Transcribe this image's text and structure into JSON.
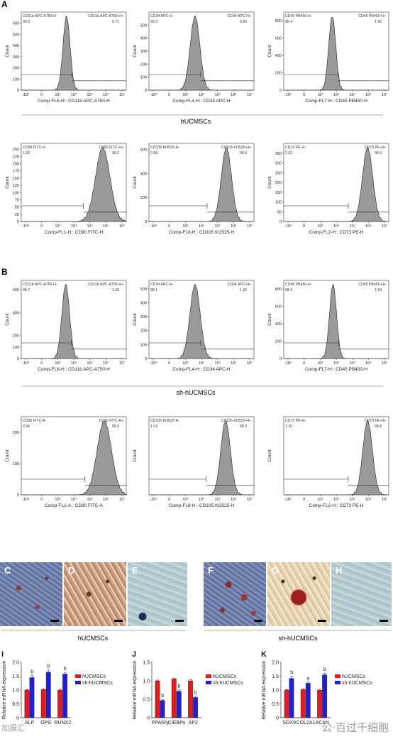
{
  "panel_letters": {
    "A": "A",
    "B": "B",
    "C": "C",
    "D": "D",
    "E": "E",
    "F": "F",
    "G": "G",
    "H": "H",
    "I": "I",
    "J": "J",
    "K": "K"
  },
  "group_labels": {
    "A": "hUCMSCs",
    "B": "sh-hUCMSCs",
    "staining_left": "hUCMSCs",
    "staining_right": "sh-hUCMSCs"
  },
  "histogram_ticks": {
    "x": [
      "-10³",
      "0",
      "10³",
      "10⁴",
      "10⁵",
      "10⁶",
      "10⁷"
    ]
  },
  "watermark": {
    "left": "加报汇",
    "right": "公·百过千细胞"
  },
  "colors": {
    "hist_fill": "#9a9a9a",
    "bar_h": "#e41a1c",
    "bar_sh": "#1f1fd6"
  },
  "chart_data": [
    {
      "type": "histogram",
      "id": "A1",
      "gate_left_label": "CD11b APC-A750-H-",
      "gate_right_label": "CD11b APC-A750-H+",
      "left_pct": "99.3",
      "right_pct": "0.72",
      "xlabel": "Comp-FL6-H:: CD11b APC-A750-H",
      "ylabel": "Count",
      "ylim": [
        0,
        700
      ],
      "yticks": [
        "0",
        "100",
        "200",
        "300",
        "400",
        "500",
        "600"
      ],
      "peak_log": 2.55,
      "width_log": 0.22
    },
    {
      "type": "histogram",
      "id": "A2",
      "gate_left_label": "CD34 APC-H-",
      "gate_right_label": "CD34 APC-H+",
      "left_pct": "99.2",
      "right_pct": "0.80",
      "xlabel": "Comp-FL4-H:: CD34 APC-H",
      "ylabel": "Count",
      "ylim": [
        0,
        600
      ],
      "yticks": [
        "0",
        "100",
        "200",
        "300",
        "400",
        "500"
      ],
      "peak_log": 2.6,
      "width_log": 0.3
    },
    {
      "type": "histogram",
      "id": "A3",
      "gate_left_label": "CD45 PB450-H-",
      "gate_right_label": "CD45 PB450-H+",
      "left_pct": "98.4",
      "right_pct": "1.56",
      "xlabel": "Comp-FL7-H:: CD45 PB450-H",
      "ylabel": "Count",
      "ylim": [
        0,
        900
      ],
      "yticks": [
        "0",
        "200",
        "400",
        "600",
        "800"
      ],
      "peak_log": 2.75,
      "width_log": 0.22
    },
    {
      "type": "histogram",
      "id": "A4",
      "gate_left_label": "CD90 FITC-H-",
      "gate_right_label": "CD90 FITC-H+",
      "left_pct": "1.82",
      "right_pct": "98.2",
      "xlabel": "Comp-FL1-H:: CD90 FITC-H",
      "ylabel": "Count",
      "ylim": [
        0,
        270
      ],
      "yticks": [
        "0",
        "25",
        "50",
        "75",
        "100",
        "125",
        "150",
        "175",
        "200",
        "225",
        "250"
      ],
      "peak_log": 4.8,
      "width_log": 0.45
    },
    {
      "type": "histogram",
      "id": "A5",
      "gate_left_label": "CD105 KO525-H-",
      "gate_right_label": "CD105 KO525-H+",
      "left_pct": "0.99",
      "right_pct": "99.0",
      "xlabel": "Comp-FL8-H:: CD105 KO525-H",
      "ylabel": "Count",
      "ylim": [
        0,
        650
      ],
      "yticks": [
        "0",
        "200",
        "400",
        "600"
      ],
      "peak_log": 4.55,
      "width_log": 0.32
    },
    {
      "type": "histogram",
      "id": "A6",
      "gate_left_label": "CD73 PE-H-",
      "gate_right_label": "CD73 PE-H+",
      "left_pct": "2.02",
      "right_pct": "98.0",
      "xlabel": "Comp-FL2-H:: CD73 PE-H",
      "ylabel": "Count",
      "ylim": [
        0,
        400
      ],
      "yticks": [
        "0",
        "50",
        "100",
        "150",
        "200",
        "250",
        "300",
        "350"
      ],
      "peak_log": 4.95,
      "width_log": 0.32
    },
    {
      "type": "histogram",
      "id": "B1",
      "gate_left_label": "CD11b APC-A750-H-",
      "gate_right_label": "CD11b APC-A750-H+",
      "left_pct": "98.7",
      "right_pct": "1.26",
      "xlabel": "Comp-FL6-H:: CD11b APC-A750-H",
      "ylabel": "Count",
      "ylim": [
        0,
        680
      ],
      "yticks": [
        "0",
        "100",
        "200",
        "400",
        "600"
      ],
      "peak_log": 2.5,
      "width_log": 0.24
    },
    {
      "type": "histogram",
      "id": "B2",
      "gate_left_label": "CD34 APC-H-",
      "gate_right_label": "CD34 APC-H+",
      "left_pct": "98.1",
      "right_pct": "1.92",
      "xlabel": "Comp-FL4-H:: CD34 APC-H",
      "ylabel": "Count",
      "ylim": [
        0,
        560
      ],
      "yticks": [
        "0",
        "100",
        "200",
        "300",
        "400",
        "500"
      ],
      "peak_log": 2.6,
      "width_log": 0.32
    },
    {
      "type": "histogram",
      "id": "B3",
      "gate_left_label": "CD45 PB450-H-",
      "gate_right_label": "CD45 PB450-H+",
      "left_pct": "98.4",
      "right_pct": "1.64",
      "xlabel": "Comp-FL7-H:: CD45 PB450-H",
      "ylabel": "Count",
      "ylim": [
        0,
        900
      ],
      "yticks": [
        "0",
        "200",
        "400",
        "600",
        "800"
      ],
      "peak_log": 2.8,
      "width_log": 0.22
    },
    {
      "type": "histogram",
      "id": "B4",
      "gate_left_label": "CD90 FITC-A-",
      "gate_right_label": "CD90 FITC-A+",
      "left_pct": "0.99",
      "right_pct": "99.0",
      "xlabel": "Comp-FL1-A:: CD90 FITC-A",
      "ylabel": "Count",
      "ylim": [
        0,
        250
      ],
      "yticks": [
        "0",
        "100",
        "200"
      ],
      "peak_log": 4.9,
      "width_log": 0.45
    },
    {
      "type": "histogram",
      "id": "B5",
      "gate_left_label": "CD105 KO525-H-",
      "gate_right_label": "CD105 KO525-H+",
      "left_pct": "1.03",
      "right_pct": "99.0",
      "xlabel": "Comp-FL8-H:: CD105 KO525-H",
      "ylabel": "Count",
      "ylim": [
        0,
        580
      ],
      "yticks": [],
      "peak_log": 4.5,
      "width_log": 0.3
    },
    {
      "type": "histogram",
      "id": "B6",
      "gate_left_label": "CD73 PE-H-",
      "gate_right_label": "CD73 PE-H+",
      "left_pct": "1.20",
      "right_pct": "98.8",
      "xlabel": "Comp-FL2-H:: CD73 PE-H",
      "ylabel": "Count",
      "ylim": [
        0,
        350
      ],
      "yticks": [],
      "peak_log": 4.95,
      "width_log": 0.3
    },
    {
      "type": "bar",
      "id": "I",
      "categories": [
        "ALP",
        "OPG",
        "RUNX2"
      ],
      "series": [
        {
          "name": "hUCMSCs",
          "values": [
            1.0,
            1.02,
            1.0
          ],
          "errors": [
            0.02,
            0.02,
            0.03
          ]
        },
        {
          "name": "sh-hUCMSCs",
          "values": [
            1.45,
            1.65,
            1.58
          ],
          "errors": [
            0.07,
            0.08,
            0.06
          ]
        }
      ],
      "sig": [
        "b",
        "b",
        "b"
      ],
      "ylabel": "Relative mRNA expression",
      "ylim": [
        0,
        2.0
      ],
      "yticks": [
        "0",
        "0.5",
        "1.0",
        "1.5",
        "2.0"
      ]
    },
    {
      "type": "bar",
      "id": "J",
      "categories": [
        "PPAR/γ",
        "C/EBPs",
        "AP2"
      ],
      "series": [
        {
          "name": "hUCMSCs",
          "values": [
            1.0,
            1.05,
            1.0
          ],
          "errors": [
            0.02,
            0.02,
            0.03
          ]
        },
        {
          "name": "sh-hUCMSCs",
          "values": [
            0.47,
            0.72,
            0.55
          ],
          "errors": [
            0.03,
            0.04,
            0.03
          ]
        }
      ],
      "sig": [
        "b",
        "b",
        "b"
      ],
      "ylabel": "Relative mRNA expression",
      "ylim": [
        0,
        1.5
      ],
      "yticks": [
        "0",
        "0.5",
        "1.0",
        "1.5"
      ]
    },
    {
      "type": "bar",
      "id": "K",
      "categories": [
        "SOX9",
        "COL2A1",
        "ACAN"
      ],
      "series": [
        {
          "name": "hUCMSCs",
          "values": [
            1.0,
            1.02,
            1.0
          ],
          "errors": [
            0.02,
            0.02,
            0.03
          ]
        },
        {
          "name": "sh-hUCMSCs",
          "values": [
            1.42,
            1.25,
            1.55
          ],
          "errors": [
            0.08,
            0.05,
            0.06
          ]
        }
      ],
      "sig": [
        "b",
        "a",
        "b"
      ],
      "ylabel": "Relative mRNA expression",
      "ylim": [
        0,
        2.0
      ],
      "yticks": [
        "0",
        "0.5",
        "1.0",
        "1.5",
        "2.0"
      ]
    }
  ]
}
